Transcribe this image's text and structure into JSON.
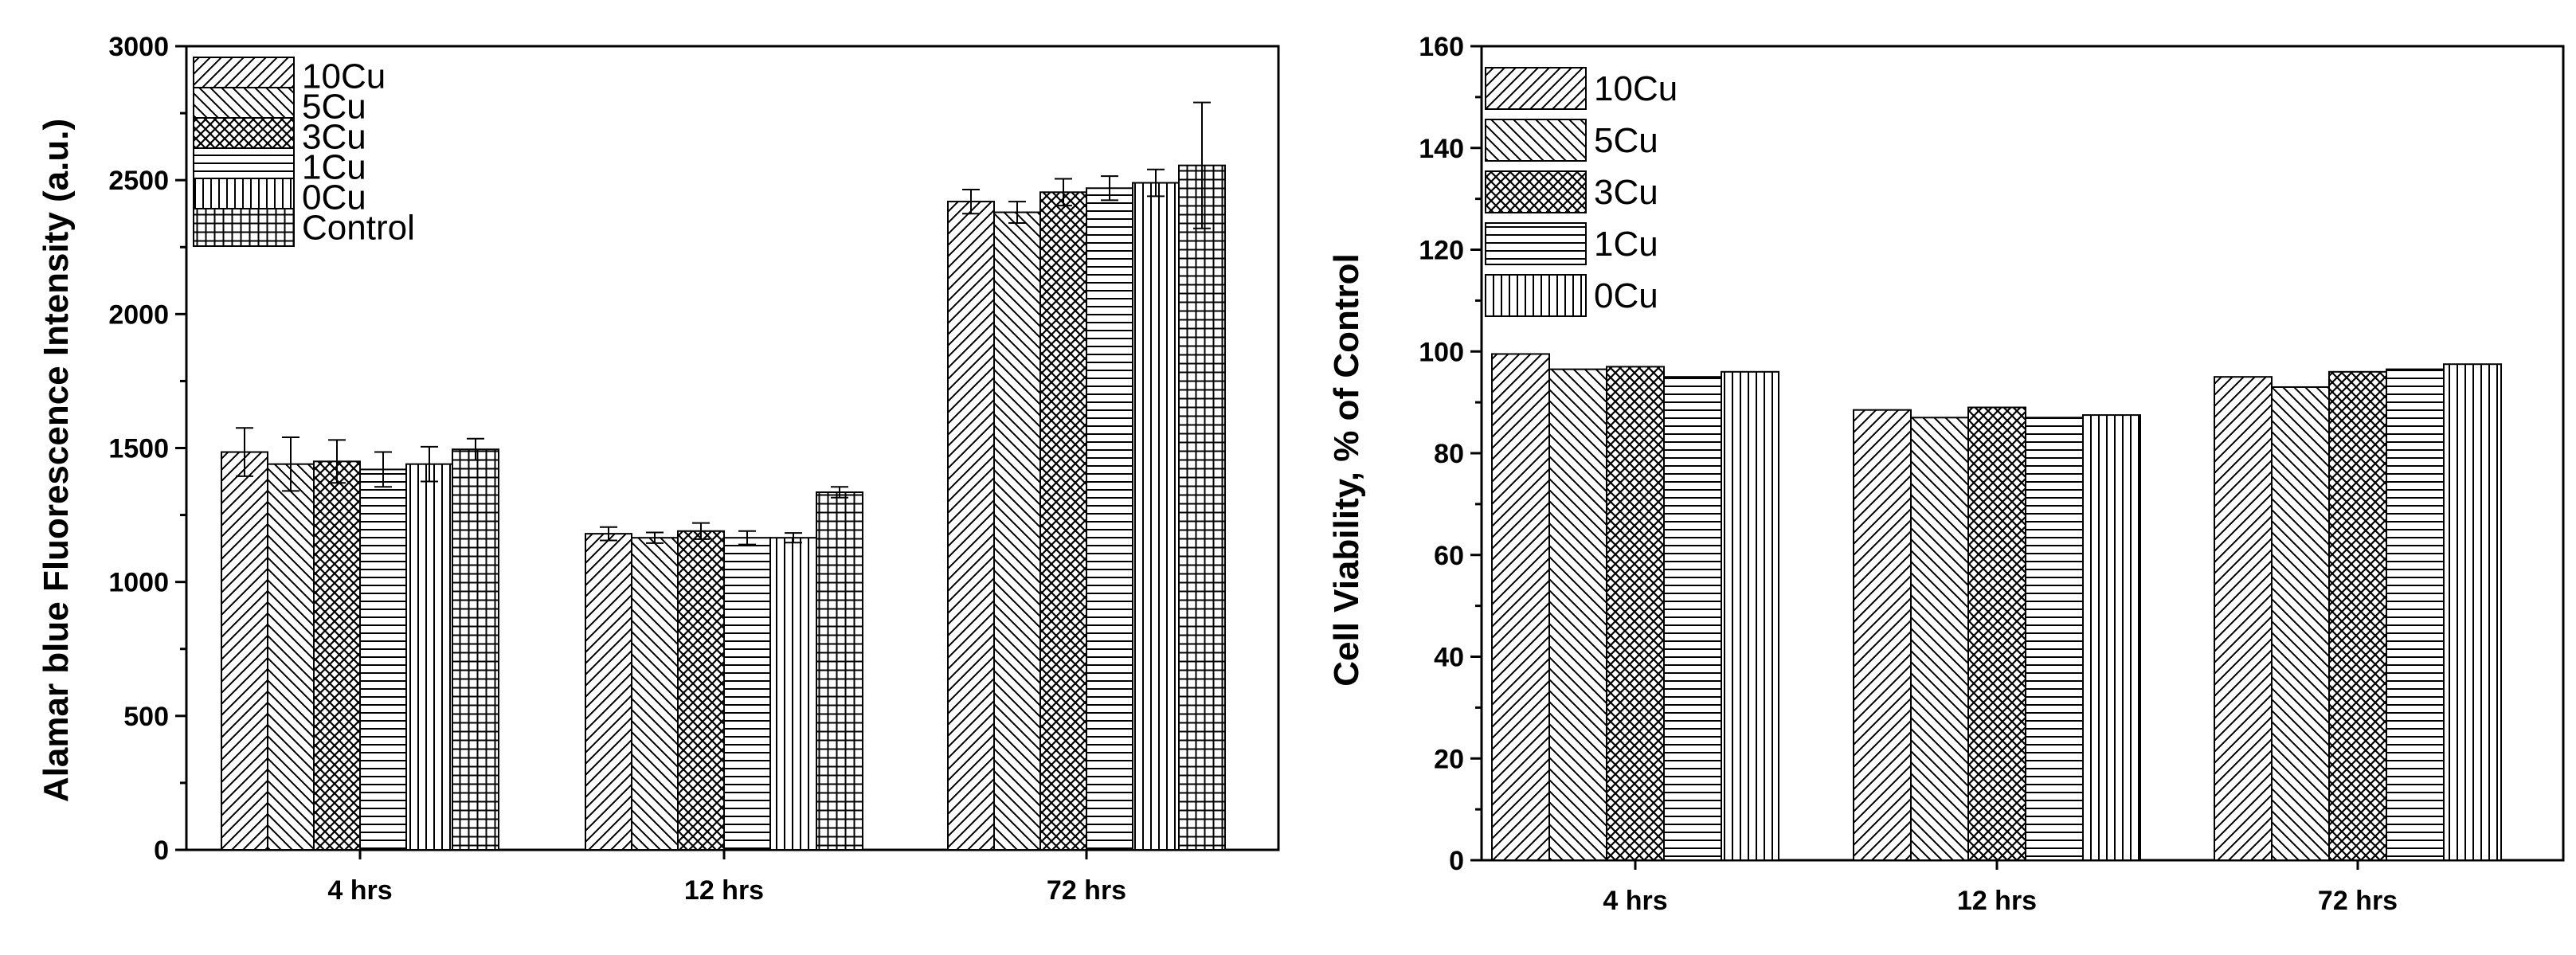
{
  "chart_data": [
    {
      "type": "bar",
      "title": "",
      "xlabel": "",
      "ylabel": "Alamar blue Fluorescence Intensity (a.u.)",
      "ylim": [
        0,
        3000
      ],
      "yticks": [
        0,
        500,
        1000,
        1500,
        2000,
        2500,
        3000
      ],
      "categories": [
        "4 hrs",
        "12 hrs",
        "72 hrs"
      ],
      "legend_position": "top-left",
      "series": [
        {
          "name": "10Cu",
          "pattern": "diag-right",
          "values": [
            1485,
            1180,
            2420
          ],
          "errors": [
            90,
            25,
            45
          ]
        },
        {
          "name": "5Cu",
          "pattern": "diag-left",
          "values": [
            1440,
            1165,
            2380
          ],
          "errors": [
            100,
            20,
            40
          ]
        },
        {
          "name": "3Cu",
          "pattern": "crosshatch",
          "values": [
            1450,
            1190,
            2455
          ],
          "errors": [
            80,
            30,
            50
          ]
        },
        {
          "name": "1Cu",
          "pattern": "horizontal",
          "values": [
            1420,
            1165,
            2470
          ],
          "errors": [
            65,
            25,
            45
          ]
        },
        {
          "name": "0Cu",
          "pattern": "vertical",
          "values": [
            1440,
            1165,
            2490
          ],
          "errors": [
            65,
            18,
            50
          ]
        },
        {
          "name": "Control",
          "pattern": "grid",
          "values": [
            1495,
            1335,
            2555
          ],
          "errors": [
            40,
            20,
            235
          ]
        }
      ]
    },
    {
      "type": "bar",
      "title": "",
      "xlabel": "",
      "ylabel": "Cell Viability, % of Control",
      "ylim": [
        0,
        160
      ],
      "yticks": [
        0,
        20,
        40,
        60,
        80,
        100,
        120,
        140,
        160
      ],
      "categories": [
        "4 hrs",
        "12 hrs",
        "72 hrs"
      ],
      "legend_position": "top-left",
      "series": [
        {
          "name": "10Cu",
          "pattern": "diag-right",
          "values": [
            99.5,
            88.5,
            95
          ]
        },
        {
          "name": "5Cu",
          "pattern": "diag-left",
          "values": [
            96.5,
            87,
            93
          ]
        },
        {
          "name": "3Cu",
          "pattern": "crosshatch",
          "values": [
            97,
            89,
            96
          ]
        },
        {
          "name": "1Cu",
          "pattern": "horizontal",
          "values": [
            95,
            87,
            96.5
          ]
        },
        {
          "name": "0Cu",
          "pattern": "vertical",
          "values": [
            96,
            87.5,
            97.5
          ]
        }
      ]
    }
  ]
}
